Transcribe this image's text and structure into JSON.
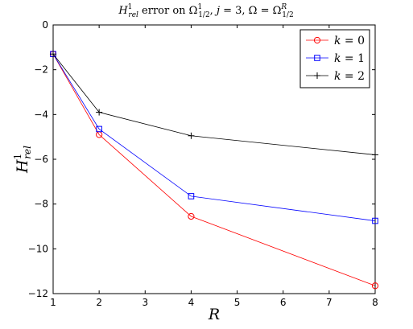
{
  "chart_data": {
    "type": "line",
    "title": "H¹_rel error on Ω¹_{1/2}, j = 3, Ω = Ωᴿ_{1/2}",
    "title_parts": {
      "h": "H",
      "h_sup": "1",
      "h_sub": "rel",
      "word": " error on ",
      "omega1": "Ω",
      "omega1_sup": "1",
      "omega1_sub": "1/2",
      "mid": ", ",
      "j": "j",
      "j_eq": " = 3, ",
      "omega_a": "Ω",
      "omega_eq": " = ",
      "omega_b": "Ω",
      "omega_b_sup": "R",
      "omega_b_sub": "1/2"
    },
    "xlabel": "R",
    "ylabel": {
      "base": "H",
      "sup": "1",
      "sub": "rel"
    },
    "xlim": [
      1,
      8
    ],
    "ylim": [
      -12,
      0
    ],
    "xticks": [
      1,
      2,
      3,
      4,
      5,
      6,
      7,
      8
    ],
    "yticks": [
      0,
      -2,
      -4,
      -6,
      -8,
      -10,
      -12
    ],
    "xtick_labels": [
      "1",
      "2",
      "3",
      "4",
      "5",
      "6",
      "7",
      "8"
    ],
    "ytick_labels": [
      "0",
      "−2",
      "−4",
      "−6",
      "−8",
      "−10",
      "−12"
    ],
    "grid": false,
    "legend_position": "top-right",
    "x": [
      1,
      2,
      4,
      8
    ],
    "series": [
      {
        "name": "k = 0",
        "name_var": "k",
        "name_rest": " = 0",
        "color": "#ff0000",
        "marker": "circle",
        "values": [
          -1.3,
          -4.9,
          -8.55,
          -11.65
        ]
      },
      {
        "name": "k = 1",
        "name_var": "k",
        "name_rest": " = 1",
        "color": "#0000ff",
        "marker": "square",
        "values": [
          -1.3,
          -4.65,
          -7.65,
          -8.75
        ]
      },
      {
        "name": "k = 2",
        "name_var": "k",
        "name_rest": " = 2",
        "color": "#000000",
        "marker": "plus",
        "values": [
          -1.3,
          -3.9,
          -4.95,
          -5.8
        ]
      }
    ]
  }
}
